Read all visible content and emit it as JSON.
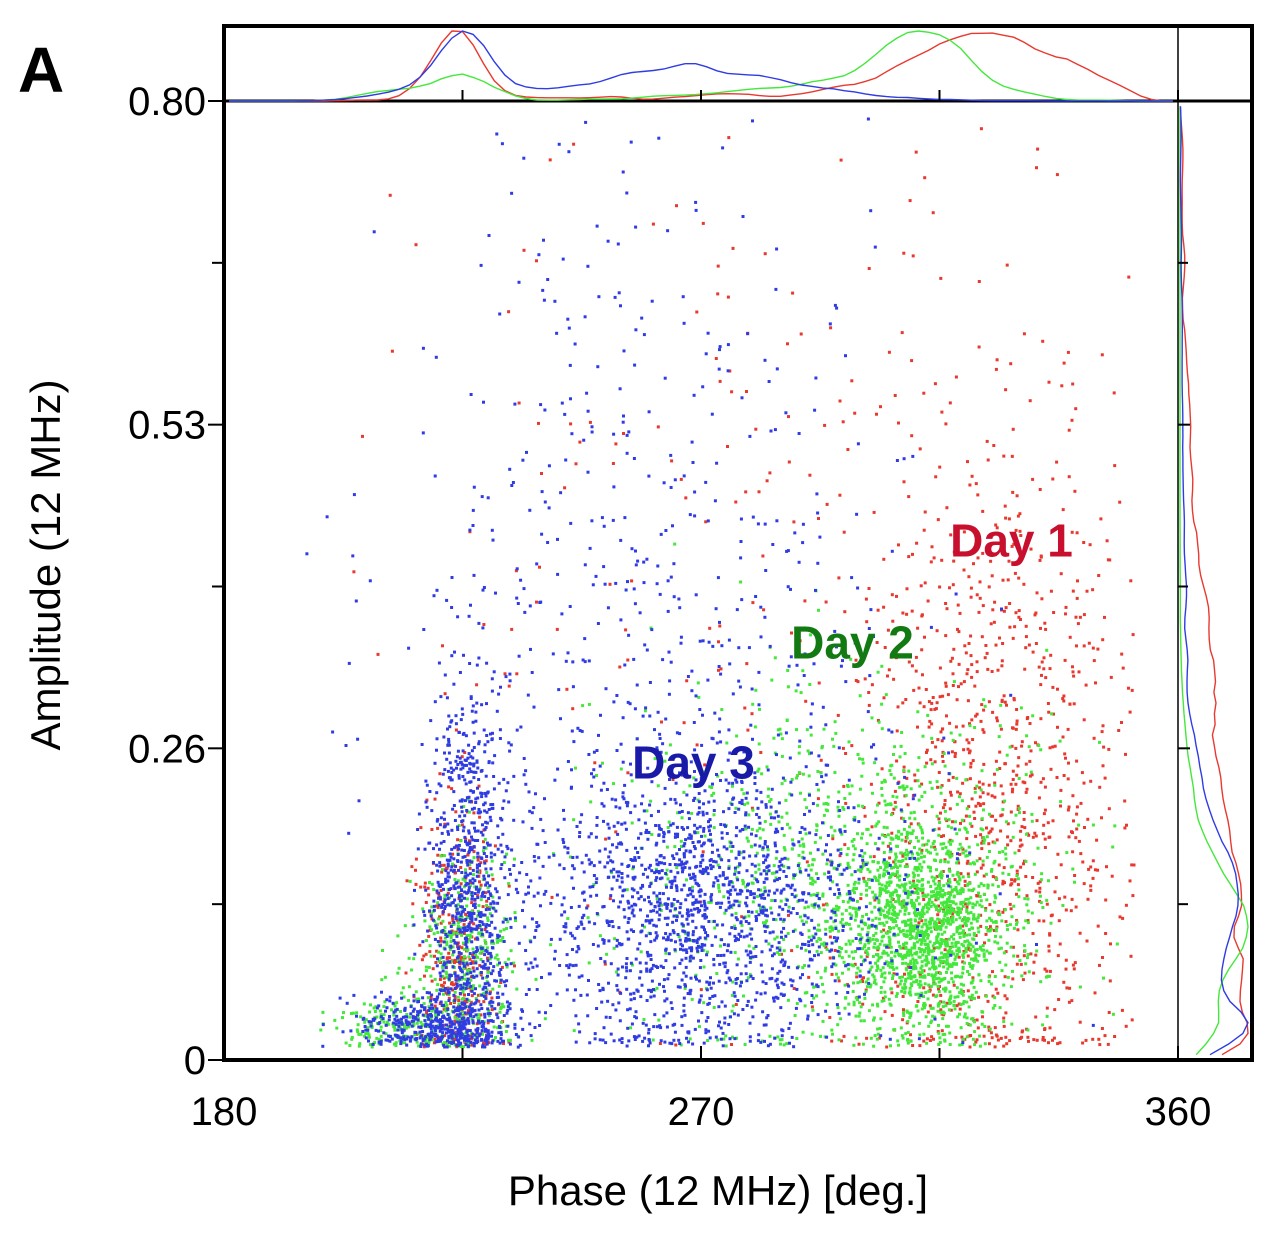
{
  "panel_label": "A",
  "chart_data": {
    "type": "scatter",
    "title": "",
    "xlabel": "Phase (12 MHz) [deg.]",
    "ylabel": "Amplitude (12 MHz)",
    "xlim": [
      180,
      360
    ],
    "ylim": [
      0,
      0.8
    ],
    "x_ticks": [
      180,
      270,
      360
    ],
    "x_tick_labels": [
      "180",
      "270",
      "360"
    ],
    "y_ticks": [
      0,
      0.26,
      0.53,
      0.8
    ],
    "y_tick_labels": [
      "0",
      "0.26",
      "0.53",
      "0.80"
    ],
    "marginal_distributions": true,
    "grid": false,
    "series": [
      {
        "name": "Day 1",
        "color": "#e8392f",
        "label_color": "#c8102e",
        "label_at": [
          317,
          0.42
        ],
        "approx_points": 1800,
        "clusters": [
          {
            "x": 325,
            "y": 0.2,
            "sx": 15,
            "sy": 0.16,
            "n": 1000
          },
          {
            "x": 224,
            "y": 0.09,
            "sx": 4,
            "sy": 0.07,
            "n": 350
          },
          {
            "x": 295,
            "y": 0.4,
            "sx": 40,
            "sy": 0.2,
            "n": 250
          }
        ]
      },
      {
        "name": "Day 2",
        "color": "#44e83b",
        "label_color": "#137a13",
        "label_at": [
          287,
          0.335
        ],
        "approx_points": 3000,
        "clusters": [
          {
            "x": 312,
            "y": 0.11,
            "sx": 8,
            "sy": 0.04,
            "n": 1400
          },
          {
            "x": 295,
            "y": 0.16,
            "sx": 20,
            "sy": 0.08,
            "n": 900
          },
          {
            "x": 225,
            "y": 0.08,
            "sx": 5,
            "sy": 0.05,
            "n": 400
          },
          {
            "x": 212,
            "y": 0.03,
            "sx": 5,
            "sy": 0.01,
            "n": 150
          }
        ]
      },
      {
        "name": "Day 3",
        "color": "#2f3ce4",
        "label_color": "#1a1aa8",
        "label_at": [
          257,
          0.235
        ],
        "approx_points": 3200,
        "clusters": [
          {
            "x": 270,
            "y": 0.13,
            "sx": 17,
            "sy": 0.06,
            "n": 1400
          },
          {
            "x": 226,
            "y": 0.13,
            "sx": 4,
            "sy": 0.1,
            "n": 900
          },
          {
            "x": 218,
            "y": 0.03,
            "sx": 6,
            "sy": 0.012,
            "n": 300
          },
          {
            "x": 262,
            "y": 0.35,
            "sx": 25,
            "sy": 0.2,
            "n": 600
          }
        ]
      }
    ]
  }
}
